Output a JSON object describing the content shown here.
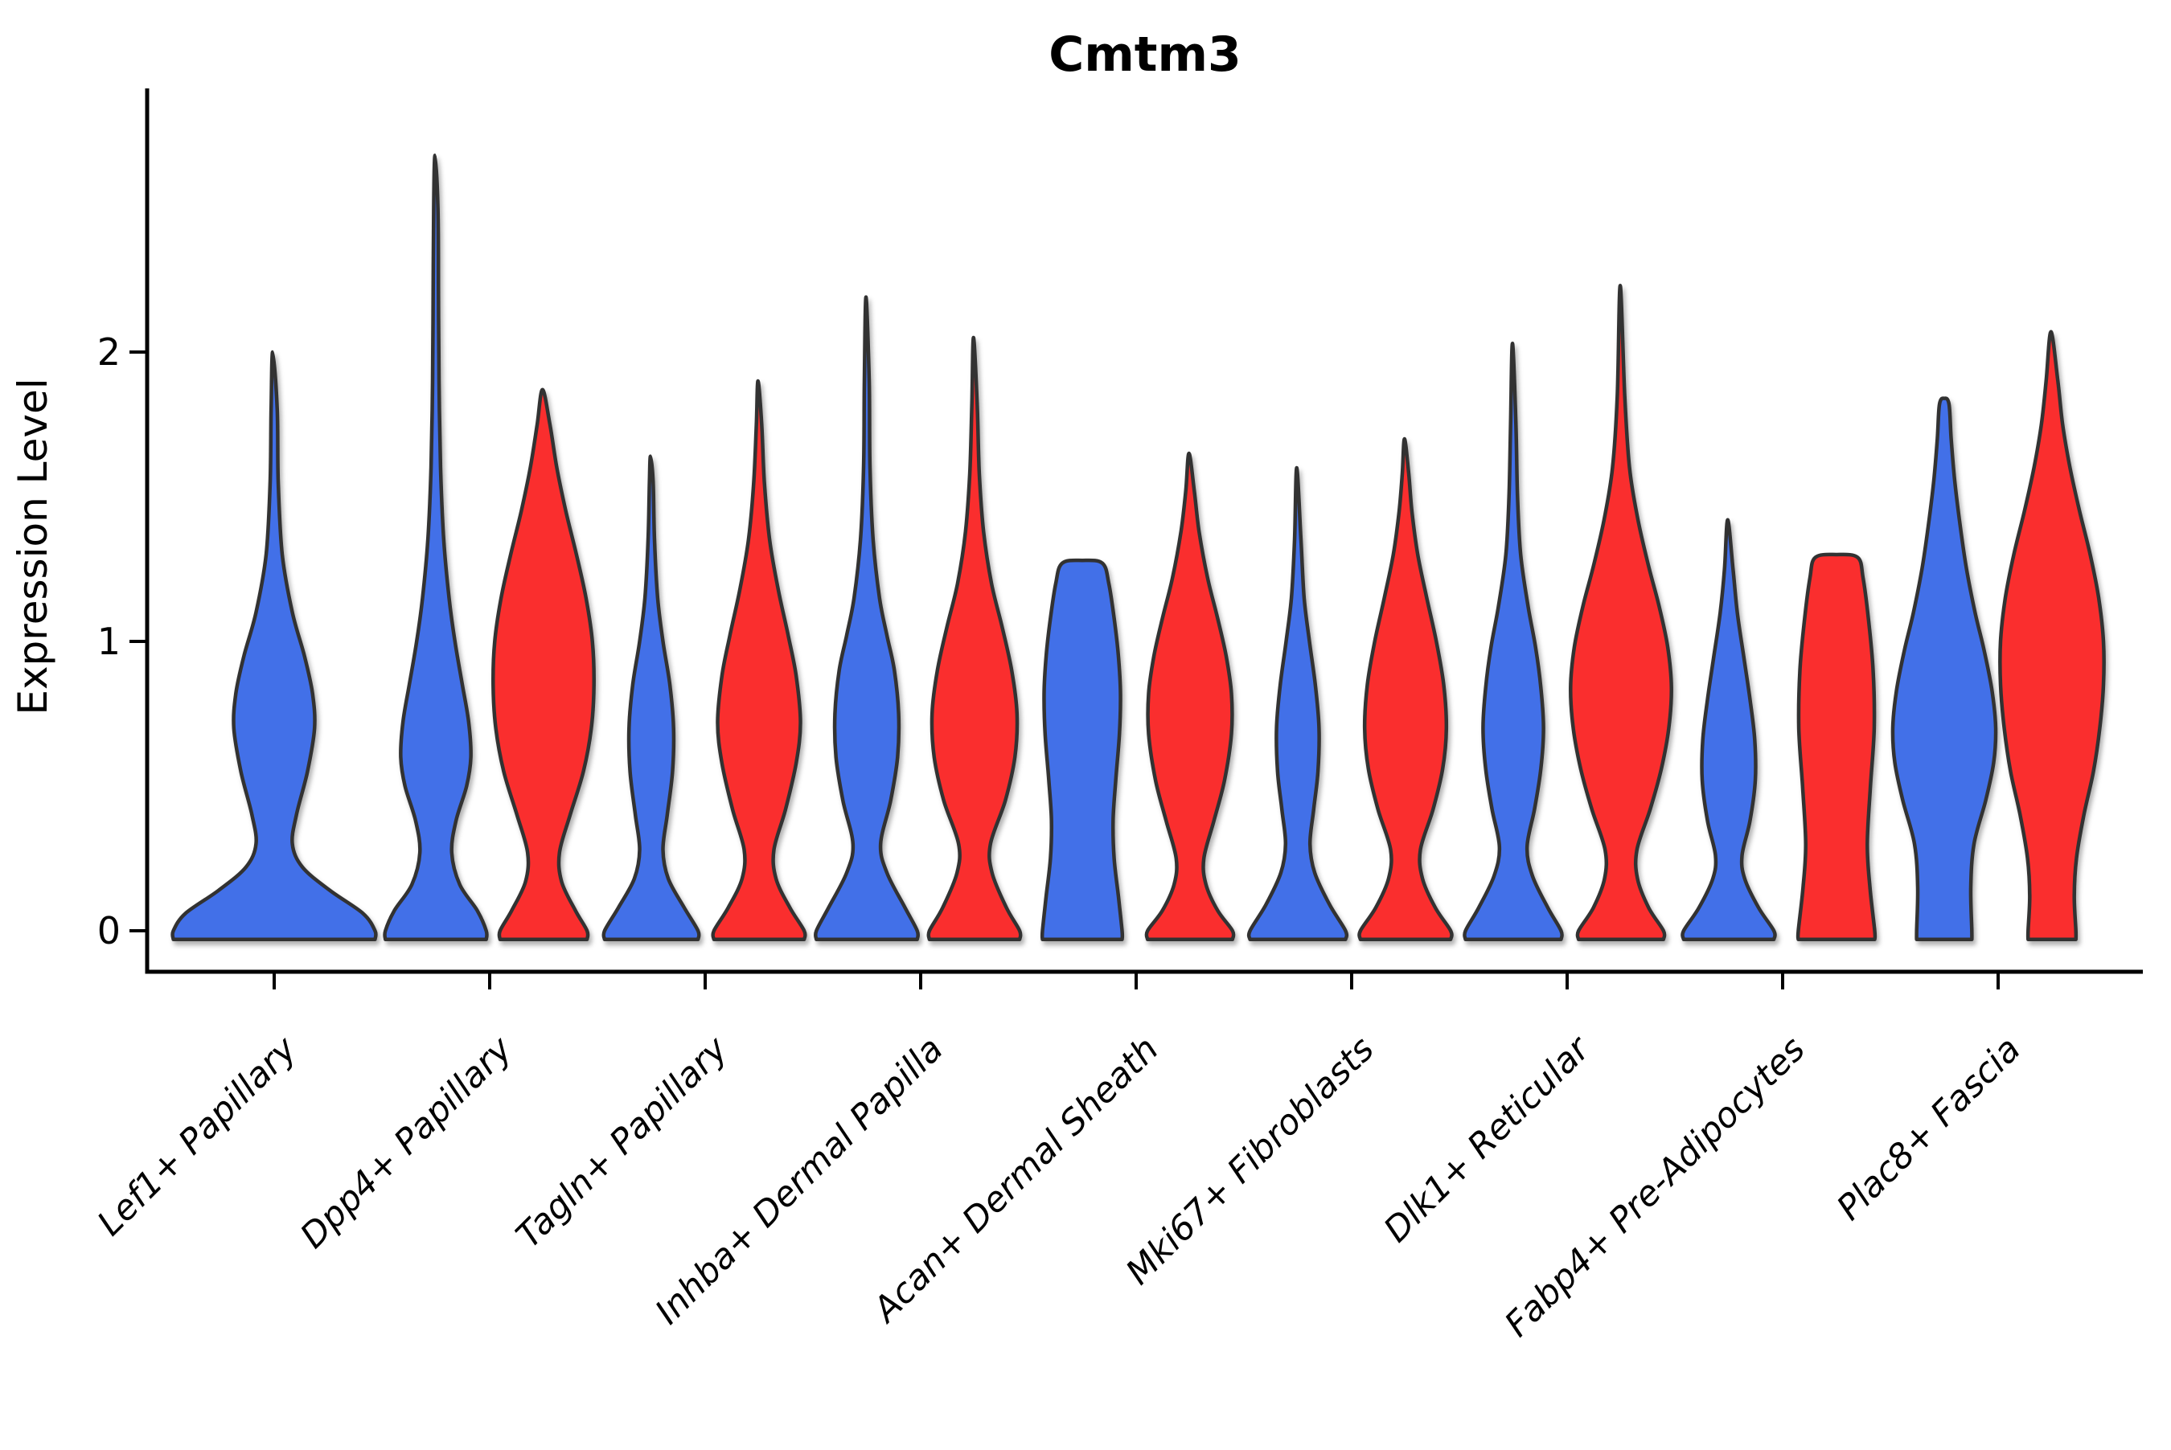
{
  "chart_data": {
    "type": "violin",
    "title": "Cmtm3",
    "ylabel": "Expression Level",
    "xlabel": "",
    "y_ticks": [
      "0",
      "1",
      "2"
    ],
    "y_tick_values": [
      0,
      1,
      2
    ],
    "y_range": [
      -0.09,
      2.92
    ],
    "grid": "off",
    "legend": "none",
    "categories": [
      "Lef1+ Papillary",
      "Dpp4+ Papillary",
      "Tagln+ Papillary",
      "Inhba+ Dermal Papilla",
      "Acan+ Dermal Sheath",
      "Mki67+ Fibroblasts",
      "Dlk1+ Reticular",
      "Fabp4+ Pre-Adipocytes",
      "Plac8+ Fascia"
    ],
    "series_colors": {
      "blue": "#4270E8",
      "red": "#FA2D2D"
    },
    "outline_color": "#333333",
    "violins": [
      {
        "category": 0,
        "series": "blue",
        "position": "center",
        "width_scale": 1.9,
        "max": 2.0,
        "profile": [
          [
            -0.03,
            1.0
          ],
          [
            0,
            1.0
          ],
          [
            0.06,
            0.88
          ],
          [
            0.14,
            0.55
          ],
          [
            0.22,
            0.28
          ],
          [
            0.3,
            0.18
          ],
          [
            0.4,
            0.22
          ],
          [
            0.55,
            0.33
          ],
          [
            0.7,
            0.4
          ],
          [
            0.82,
            0.38
          ],
          [
            0.95,
            0.3
          ],
          [
            1.1,
            0.18
          ],
          [
            1.3,
            0.08
          ],
          [
            1.55,
            0.04
          ],
          [
            1.8,
            0.03
          ],
          [
            2.0,
            0.015
          ]
        ]
      },
      {
        "category": 1,
        "series": "blue",
        "position": "left",
        "width_scale": 1.0,
        "max": 2.68,
        "profile": [
          [
            -0.03,
            0.95
          ],
          [
            0,
            0.95
          ],
          [
            0.07,
            0.78
          ],
          [
            0.16,
            0.45
          ],
          [
            0.27,
            0.3
          ],
          [
            0.38,
            0.38
          ],
          [
            0.5,
            0.58
          ],
          [
            0.6,
            0.66
          ],
          [
            0.72,
            0.62
          ],
          [
            0.85,
            0.5
          ],
          [
            1.0,
            0.36
          ],
          [
            1.15,
            0.25
          ],
          [
            1.35,
            0.15
          ],
          [
            1.6,
            0.09
          ],
          [
            1.9,
            0.06
          ],
          [
            2.2,
            0.05
          ],
          [
            2.5,
            0.04
          ],
          [
            2.68,
            0.015
          ]
        ]
      },
      {
        "category": 1,
        "series": "red",
        "position": "right",
        "width_scale": 1.0,
        "max": 1.87,
        "profile": [
          [
            -0.03,
            0.82
          ],
          [
            0,
            0.82
          ],
          [
            0.07,
            0.6
          ],
          [
            0.17,
            0.34
          ],
          [
            0.27,
            0.3
          ],
          [
            0.4,
            0.5
          ],
          [
            0.55,
            0.75
          ],
          [
            0.7,
            0.9
          ],
          [
            0.85,
            0.95
          ],
          [
            1.0,
            0.92
          ],
          [
            1.15,
            0.8
          ],
          [
            1.3,
            0.62
          ],
          [
            1.45,
            0.42
          ],
          [
            1.6,
            0.25
          ],
          [
            1.75,
            0.12
          ],
          [
            1.87,
            0.02
          ]
        ]
      },
      {
        "category": 2,
        "series": "blue",
        "position": "left",
        "width_scale": 1.0,
        "max": 1.64,
        "profile": [
          [
            -0.03,
            0.88
          ],
          [
            0,
            0.88
          ],
          [
            0.08,
            0.62
          ],
          [
            0.18,
            0.32
          ],
          [
            0.28,
            0.22
          ],
          [
            0.4,
            0.3
          ],
          [
            0.55,
            0.4
          ],
          [
            0.7,
            0.42
          ],
          [
            0.85,
            0.35
          ],
          [
            1.0,
            0.22
          ],
          [
            1.15,
            0.12
          ],
          [
            1.35,
            0.06
          ],
          [
            1.55,
            0.035
          ],
          [
            1.64,
            0.015
          ]
        ]
      },
      {
        "category": 2,
        "series": "red",
        "position": "right",
        "width_scale": 1.0,
        "max": 1.9,
        "profile": [
          [
            -0.03,
            0.85
          ],
          [
            0,
            0.85
          ],
          [
            0.08,
            0.58
          ],
          [
            0.18,
            0.32
          ],
          [
            0.28,
            0.28
          ],
          [
            0.42,
            0.5
          ],
          [
            0.58,
            0.7
          ],
          [
            0.72,
            0.78
          ],
          [
            0.88,
            0.7
          ],
          [
            1.02,
            0.55
          ],
          [
            1.18,
            0.36
          ],
          [
            1.35,
            0.2
          ],
          [
            1.55,
            0.1
          ],
          [
            1.75,
            0.05
          ],
          [
            1.9,
            0.02
          ]
        ]
      },
      {
        "category": 3,
        "series": "blue",
        "position": "left",
        "width_scale": 1.0,
        "max": 2.19,
        "profile": [
          [
            -0.03,
            0.95
          ],
          [
            0,
            0.95
          ],
          [
            0.08,
            0.72
          ],
          [
            0.2,
            0.38
          ],
          [
            0.3,
            0.26
          ],
          [
            0.45,
            0.45
          ],
          [
            0.6,
            0.58
          ],
          [
            0.75,
            0.6
          ],
          [
            0.9,
            0.52
          ],
          [
            1.02,
            0.38
          ],
          [
            1.15,
            0.24
          ],
          [
            1.35,
            0.12
          ],
          [
            1.6,
            0.06
          ],
          [
            1.9,
            0.045
          ],
          [
            2.19,
            0.015
          ]
        ]
      },
      {
        "category": 3,
        "series": "red",
        "position": "right",
        "width_scale": 1.0,
        "max": 2.05,
        "profile": [
          [
            -0.03,
            0.85
          ],
          [
            0,
            0.85
          ],
          [
            0.08,
            0.6
          ],
          [
            0.2,
            0.33
          ],
          [
            0.3,
            0.3
          ],
          [
            0.45,
            0.58
          ],
          [
            0.6,
            0.76
          ],
          [
            0.75,
            0.8
          ],
          [
            0.9,
            0.7
          ],
          [
            1.05,
            0.52
          ],
          [
            1.2,
            0.32
          ],
          [
            1.38,
            0.17
          ],
          [
            1.58,
            0.09
          ],
          [
            1.82,
            0.05
          ],
          [
            2.05,
            0.02
          ]
        ]
      },
      {
        "category": 4,
        "series": "blue",
        "position": "left",
        "width_scale": 1.0,
        "max": 1.28,
        "profile": [
          [
            -0.03,
            0.75
          ],
          [
            0,
            0.75
          ],
          [
            0.12,
            0.68
          ],
          [
            0.25,
            0.6
          ],
          [
            0.38,
            0.58
          ],
          [
            0.52,
            0.63
          ],
          [
            0.68,
            0.7
          ],
          [
            0.82,
            0.72
          ],
          [
            0.95,
            0.68
          ],
          [
            1.08,
            0.6
          ],
          [
            1.2,
            0.5
          ],
          [
            1.27,
            0.38
          ],
          [
            1.28,
            0.0
          ]
        ]
      },
      {
        "category": 4,
        "series": "red",
        "position": "right",
        "width_scale": 1.0,
        "max": 1.65,
        "profile": [
          [
            -0.03,
            0.8
          ],
          [
            0,
            0.8
          ],
          [
            0.07,
            0.52
          ],
          [
            0.16,
            0.3
          ],
          [
            0.25,
            0.26
          ],
          [
            0.38,
            0.45
          ],
          [
            0.52,
            0.65
          ],
          [
            0.68,
            0.78
          ],
          [
            0.82,
            0.78
          ],
          [
            0.95,
            0.68
          ],
          [
            1.08,
            0.52
          ],
          [
            1.22,
            0.33
          ],
          [
            1.38,
            0.17
          ],
          [
            1.52,
            0.08
          ],
          [
            1.65,
            0.02
          ]
        ]
      },
      {
        "category": 5,
        "series": "blue",
        "position": "left",
        "width_scale": 1.0,
        "max": 1.6,
        "profile": [
          [
            -0.03,
            0.9
          ],
          [
            0,
            0.9
          ],
          [
            0.09,
            0.6
          ],
          [
            0.2,
            0.32
          ],
          [
            0.3,
            0.23
          ],
          [
            0.42,
            0.3
          ],
          [
            0.55,
            0.38
          ],
          [
            0.7,
            0.4
          ],
          [
            0.85,
            0.33
          ],
          [
            1.0,
            0.22
          ],
          [
            1.15,
            0.12
          ],
          [
            1.35,
            0.06
          ],
          [
            1.6,
            0.02
          ]
        ]
      },
      {
        "category": 5,
        "series": "red",
        "position": "right",
        "width_scale": 1.0,
        "max": 1.7,
        "profile": [
          [
            -0.03,
            0.85
          ],
          [
            0,
            0.85
          ],
          [
            0.08,
            0.56
          ],
          [
            0.18,
            0.32
          ],
          [
            0.28,
            0.28
          ],
          [
            0.42,
            0.52
          ],
          [
            0.56,
            0.7
          ],
          [
            0.7,
            0.77
          ],
          [
            0.85,
            0.72
          ],
          [
            1.0,
            0.58
          ],
          [
            1.15,
            0.4
          ],
          [
            1.3,
            0.23
          ],
          [
            1.45,
            0.12
          ],
          [
            1.58,
            0.06
          ],
          [
            1.7,
            0.02
          ]
        ]
      },
      {
        "category": 6,
        "series": "blue",
        "position": "left",
        "width_scale": 1.0,
        "max": 2.03,
        "profile": [
          [
            -0.03,
            0.9
          ],
          [
            0,
            0.9
          ],
          [
            0.08,
            0.65
          ],
          [
            0.19,
            0.36
          ],
          [
            0.29,
            0.26
          ],
          [
            0.42,
            0.4
          ],
          [
            0.56,
            0.52
          ],
          [
            0.7,
            0.57
          ],
          [
            0.84,
            0.52
          ],
          [
            0.98,
            0.42
          ],
          [
            1.12,
            0.28
          ],
          [
            1.3,
            0.14
          ],
          [
            1.5,
            0.08
          ],
          [
            1.75,
            0.05
          ],
          [
            2.03,
            0.015
          ]
        ]
      },
      {
        "category": 6,
        "series": "red",
        "position": "right",
        "width_scale": 1.0,
        "max": 2.23,
        "profile": [
          [
            -0.03,
            0.8
          ],
          [
            0,
            0.8
          ],
          [
            0.08,
            0.52
          ],
          [
            0.18,
            0.31
          ],
          [
            0.28,
            0.3
          ],
          [
            0.42,
            0.55
          ],
          [
            0.56,
            0.76
          ],
          [
            0.7,
            0.9
          ],
          [
            0.84,
            0.95
          ],
          [
            0.98,
            0.88
          ],
          [
            1.12,
            0.72
          ],
          [
            1.26,
            0.52
          ],
          [
            1.42,
            0.32
          ],
          [
            1.6,
            0.16
          ],
          [
            1.85,
            0.07
          ],
          [
            2.23,
            0.015
          ]
        ]
      },
      {
        "category": 7,
        "series": "blue",
        "position": "left",
        "width_scale": 1.0,
        "max": 1.42,
        "profile": [
          [
            -0.03,
            0.85
          ],
          [
            0,
            0.85
          ],
          [
            0.08,
            0.56
          ],
          [
            0.18,
            0.3
          ],
          [
            0.26,
            0.25
          ],
          [
            0.38,
            0.4
          ],
          [
            0.52,
            0.5
          ],
          [
            0.66,
            0.49
          ],
          [
            0.8,
            0.4
          ],
          [
            0.95,
            0.28
          ],
          [
            1.1,
            0.16
          ],
          [
            1.25,
            0.08
          ],
          [
            1.42,
            0.02
          ]
        ]
      },
      {
        "category": 7,
        "series": "red",
        "position": "right",
        "width_scale": 1.0,
        "max": 1.3,
        "profile": [
          [
            -0.03,
            0.72
          ],
          [
            0,
            0.72
          ],
          [
            0.15,
            0.63
          ],
          [
            0.3,
            0.58
          ],
          [
            0.5,
            0.64
          ],
          [
            0.7,
            0.71
          ],
          [
            0.9,
            0.69
          ],
          [
            1.08,
            0.6
          ],
          [
            1.22,
            0.5
          ],
          [
            1.29,
            0.4
          ],
          [
            1.3,
            0.0
          ]
        ]
      },
      {
        "category": 8,
        "series": "blue",
        "position": "left",
        "width_scale": 1.0,
        "max": 1.84,
        "profile": [
          [
            -0.03,
            0.52
          ],
          [
            0,
            0.52
          ],
          [
            0.15,
            0.5
          ],
          [
            0.3,
            0.56
          ],
          [
            0.45,
            0.78
          ],
          [
            0.58,
            0.93
          ],
          [
            0.7,
            0.97
          ],
          [
            0.83,
            0.9
          ],
          [
            0.97,
            0.75
          ],
          [
            1.1,
            0.58
          ],
          [
            1.25,
            0.42
          ],
          [
            1.4,
            0.3
          ],
          [
            1.55,
            0.2
          ],
          [
            1.7,
            0.13
          ],
          [
            1.82,
            0.09
          ],
          [
            1.84,
            0.0
          ]
        ]
      },
      {
        "category": 8,
        "series": "red",
        "position": "right",
        "width_scale": 1.0,
        "max": 2.07,
        "profile": [
          [
            -0.03,
            0.45
          ],
          [
            0,
            0.45
          ],
          [
            0.12,
            0.42
          ],
          [
            0.25,
            0.46
          ],
          [
            0.4,
            0.6
          ],
          [
            0.55,
            0.78
          ],
          [
            0.7,
            0.9
          ],
          [
            0.85,
            0.97
          ],
          [
            1.0,
            0.97
          ],
          [
            1.15,
            0.88
          ],
          [
            1.3,
            0.72
          ],
          [
            1.45,
            0.52
          ],
          [
            1.6,
            0.34
          ],
          [
            1.75,
            0.2
          ],
          [
            1.9,
            0.11
          ],
          [
            2.07,
            0.02
          ]
        ]
      }
    ]
  }
}
